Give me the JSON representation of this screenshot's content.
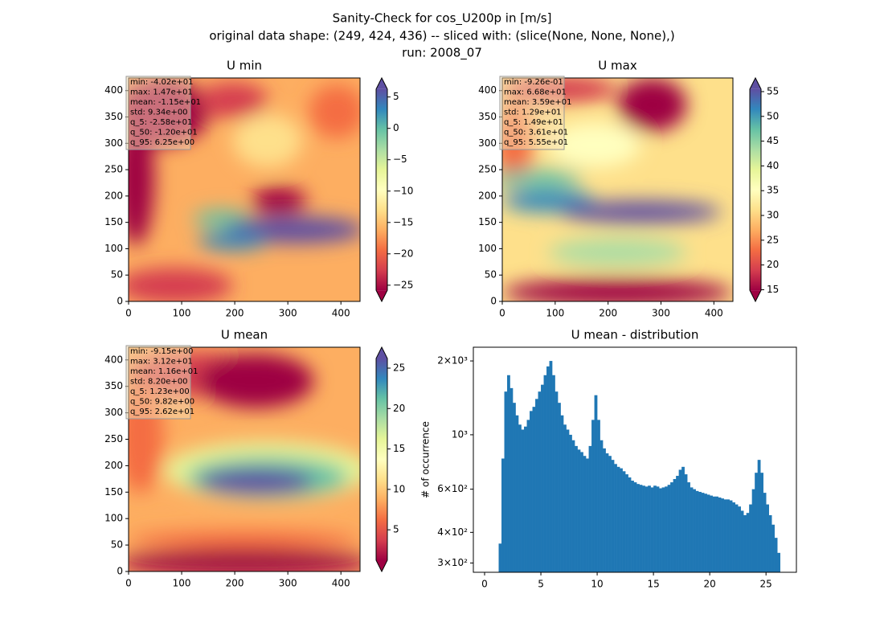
{
  "figure": {
    "title_lines": [
      "Sanity-Check for cos_U200p in [m/s]",
      "original data shape: (249, 424, 436) -- sliced with: (slice(None, None, None),)",
      "run: 2008_07"
    ]
  },
  "chart_data": [
    {
      "type": "heatmap",
      "title": "U min",
      "colormap": "Spectral",
      "xlim": [
        0,
        436
      ],
      "ylim": [
        0,
        424
      ],
      "xticks": [
        0,
        100,
        200,
        300,
        400
      ],
      "yticks": [
        0,
        50,
        100,
        150,
        200,
        250,
        300,
        350,
        400
      ],
      "colorbar": {
        "clim": [
          -25.8,
          6.25
        ],
        "ticks": [
          5,
          0,
          {
            "value": -5,
            "label": "−5"
          },
          {
            "value": -10,
            "label": "−10"
          },
          {
            "value": -15,
            "label": "−15"
          },
          {
            "value": -20,
            "label": "−20"
          },
          {
            "value": -25,
            "label": "−25"
          }
        ]
      },
      "stats": [
        "min: -4.02e+01",
        "max: 1.47e+01",
        "mean: -1.15e+01",
        "std: 9.34e+00",
        "q_5: -2.58e+01",
        "q_50: -1.20e+01",
        "q_95: 6.25e+00"
      ]
    },
    {
      "type": "heatmap",
      "title": "U max",
      "colormap": "Spectral",
      "xlim": [
        0,
        436
      ],
      "ylim": [
        0,
        424
      ],
      "xticks": [
        0,
        100,
        200,
        300,
        400
      ],
      "yticks": [
        0,
        50,
        100,
        150,
        200,
        250,
        300,
        350,
        400
      ],
      "colorbar": {
        "clim": [
          14.9,
          55.5
        ],
        "ticks": [
          15,
          20,
          25,
          30,
          35,
          40,
          45,
          50,
          55
        ]
      },
      "stats": [
        "min: -9.26e-01",
        "max: 6.68e+01",
        "mean: 3.59e+01",
        "std: 1.29e+01",
        "q_5: 1.49e+01",
        "q_50: 3.61e+01",
        "q_95: 5.55e+01"
      ]
    },
    {
      "type": "heatmap",
      "title": "U mean",
      "colormap": "Spectral",
      "xlim": [
        0,
        436
      ],
      "ylim": [
        0,
        424
      ],
      "xticks": [
        0,
        100,
        200,
        300,
        400
      ],
      "yticks": [
        0,
        50,
        100,
        150,
        200,
        250,
        300,
        350,
        400
      ],
      "colorbar": {
        "clim": [
          1.23,
          26.2
        ],
        "ticks": [
          5,
          10,
          15,
          20,
          25
        ]
      },
      "stats": [
        "min: -9.15e+00",
        "max: 3.12e+01",
        "mean: 1.16e+01",
        "std: 8.20e+00",
        "q_5: 1.23e+00",
        "q_50: 9.82e+00",
        "q_95: 2.62e+01"
      ]
    },
    {
      "type": "histogram",
      "title": "U mean - distribution",
      "ylabel": "# of occurrence",
      "color": "#1f77b4",
      "log_y": true,
      "xlim": [
        -1.0,
        27.7
      ],
      "xticks": [
        0,
        5,
        10,
        15,
        20,
        25
      ],
      "ylim": [
        275,
        2275
      ],
      "yticks": [
        {
          "value": 300,
          "label": "3×10²"
        },
        {
          "value": 400,
          "label": "4×10²"
        },
        {
          "value": 600,
          "label": "6×10²"
        },
        {
          "value": 1000,
          "label": "10³"
        },
        {
          "value": 2000,
          "label": "2×10³"
        }
      ],
      "bins": [
        1.25,
        1.5,
        1.75,
        2,
        2.25,
        2.5,
        2.75,
        3,
        3.25,
        3.5,
        3.75,
        4,
        4.25,
        4.5,
        4.75,
        5,
        5.25,
        5.5,
        5.75,
        6,
        6.25,
        6.5,
        6.75,
        7,
        7.25,
        7.5,
        7.75,
        8,
        8.25,
        8.5,
        8.75,
        9,
        9.25,
        9.5,
        9.75,
        10,
        10.25,
        10.5,
        10.75,
        11,
        11.25,
        11.5,
        11.75,
        12,
        12.25,
        12.5,
        12.75,
        13,
        13.25,
        13.5,
        13.75,
        14,
        14.25,
        14.5,
        14.75,
        15,
        15.25,
        15.5,
        15.75,
        16,
        16.25,
        16.5,
        16.75,
        17,
        17.25,
        17.5,
        17.75,
        18,
        18.25,
        18.5,
        18.75,
        19,
        19.25,
        19.5,
        19.75,
        20,
        20.25,
        20.5,
        20.75,
        21,
        21.25,
        21.5,
        21.75,
        22,
        22.25,
        22.5,
        22.75,
        23,
        23.25,
        23.5,
        23.75,
        24,
        24.25,
        24.5,
        24.75,
        25,
        25.25,
        25.5,
        25.75,
        26,
        26.25
      ],
      "values": [
        360,
        800,
        1500,
        1750,
        1550,
        1350,
        1200,
        1100,
        1050,
        1080,
        1150,
        1250,
        1300,
        1400,
        1500,
        1600,
        1750,
        1900,
        2000,
        1750,
        1500,
        1350,
        1200,
        1100,
        1050,
        1000,
        950,
        900,
        870,
        850,
        820,
        800,
        900,
        1150,
        1450,
        1150,
        950,
        880,
        840,
        820,
        790,
        760,
        740,
        730,
        710,
        690,
        670,
        650,
        640,
        630,
        625,
        620,
        615,
        620,
        610,
        620,
        615,
        605,
        610,
        615,
        625,
        640,
        660,
        680,
        720,
        740,
        690,
        640,
        610,
        600,
        590,
        585,
        580,
        575,
        570,
        565,
        560,
        560,
        555,
        550,
        545,
        545,
        540,
        530,
        520,
        510,
        490,
        470,
        480,
        520,
        600,
        700,
        790,
        700,
        580,
        520,
        470,
        430,
        380,
        330
      ]
    }
  ]
}
